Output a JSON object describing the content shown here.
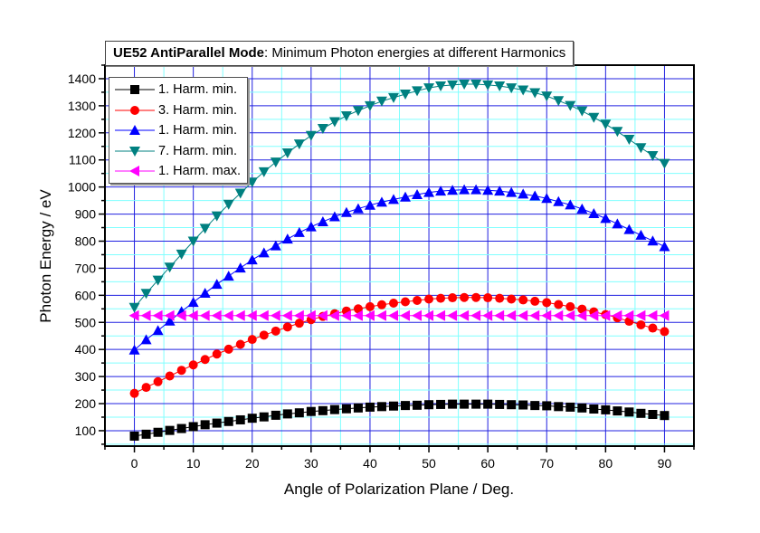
{
  "title": {
    "bold": "UE52 AntiParallel Mode",
    "rest": ": Minimum Photon energies at different Harmonics"
  },
  "chart_data": {
    "type": "line",
    "title": "UE52 AntiParallel Mode: Minimum Photon energies at different Harmonics",
    "xlabel": "Angle of Polarization Plane / Deg.",
    "ylabel": "Photon Energy / eV",
    "xlim": [
      -5,
      95
    ],
    "ylim": [
      43,
      1450
    ],
    "xticks": [
      0,
      10,
      20,
      30,
      40,
      50,
      60,
      70,
      80,
      90
    ],
    "yticks": [
      100,
      200,
      300,
      400,
      500,
      600,
      700,
      800,
      900,
      1000,
      1100,
      1200,
      1300,
      1400
    ],
    "grid": true,
    "legend_position": "top-left",
    "x": [
      0,
      2,
      4,
      6,
      8,
      10,
      12,
      14,
      16,
      18,
      20,
      22,
      24,
      26,
      28,
      30,
      32,
      34,
      36,
      38,
      40,
      42,
      44,
      46,
      48,
      50,
      52,
      54,
      56,
      58,
      60,
      62,
      64,
      66,
      68,
      70,
      72,
      74,
      76,
      78,
      80,
      82,
      84,
      86,
      88,
      90
    ],
    "series": [
      {
        "name": "1. Harm. min.",
        "color": "#000000",
        "marker": "square",
        "values": [
          80,
          87,
          94,
          101,
          108,
          115,
          122,
          128,
          134,
          140,
          146,
          151,
          157,
          162,
          166,
          171,
          174,
          178,
          181,
          184,
          187,
          189,
          191,
          193,
          194,
          196,
          197,
          198,
          198,
          198,
          198,
          197,
          196,
          195,
          193,
          192,
          189,
          187,
          184,
          180,
          177,
          173,
          169,
          164,
          160,
          156
        ]
      },
      {
        "name": "3. Harm. min.",
        "color": "#ff0000",
        "marker": "circle",
        "values": [
          238,
          260,
          281,
          302,
          323,
          343,
          363,
          383,
          401,
          419,
          437,
          453,
          468,
          483,
          497,
          510,
          522,
          532,
          542,
          550,
          558,
          565,
          571,
          576,
          581,
          586,
          589,
          591,
          592,
          592,
          591,
          589,
          586,
          583,
          578,
          573,
          566,
          558,
          549,
          539,
          529,
          517,
          504,
          491,
          479,
          466
        ]
      },
      {
        "name": "1. Harm. min.",
        "color": "#0000ff",
        "marker": "triangle-up",
        "values": [
          398,
          436,
          470,
          505,
          540,
          574,
          608,
          641,
          671,
          701,
          731,
          757,
          783,
          808,
          832,
          853,
          872,
          890,
          906,
          920,
          933,
          944,
          954,
          963,
          972,
          980,
          985,
          988,
          990,
          990,
          988,
          985,
          980,
          974,
          967,
          958,
          946,
          934,
          919,
          902,
          884,
          864,
          843,
          822,
          801,
          780
        ]
      },
      {
        "name": "7. Harm. min.",
        "color": "#008080",
        "marker": "triangle-down",
        "values": [
          555,
          607,
          656,
          704,
          752,
          800,
          847,
          893,
          936,
          977,
          1018,
          1056,
          1092,
          1126,
          1159,
          1190,
          1216,
          1241,
          1263,
          1282,
          1300,
          1317,
          1330,
          1343,
          1355,
          1366,
          1373,
          1377,
          1380,
          1380,
          1377,
          1373,
          1366,
          1358,
          1348,
          1336,
          1319,
          1301,
          1281,
          1257,
          1232,
          1205,
          1176,
          1145,
          1116,
          1087
        ]
      },
      {
        "name": "1. Harm. max.",
        "color": "#ff00ff",
        "marker": "triangle-left",
        "values": [
          525,
          525,
          525,
          525,
          525,
          525,
          525,
          525,
          525,
          525,
          525,
          525,
          525,
          525,
          525,
          525,
          525,
          525,
          525,
          525,
          525,
          525,
          525,
          525,
          525,
          525,
          525,
          525,
          525,
          525,
          525,
          525,
          525,
          525,
          525,
          525,
          525,
          525,
          525,
          525,
          525,
          525,
          525,
          525,
          525,
          525
        ]
      }
    ]
  },
  "colors": {
    "major_grid": "#2020e0",
    "minor_grid": "#80ffff"
  }
}
